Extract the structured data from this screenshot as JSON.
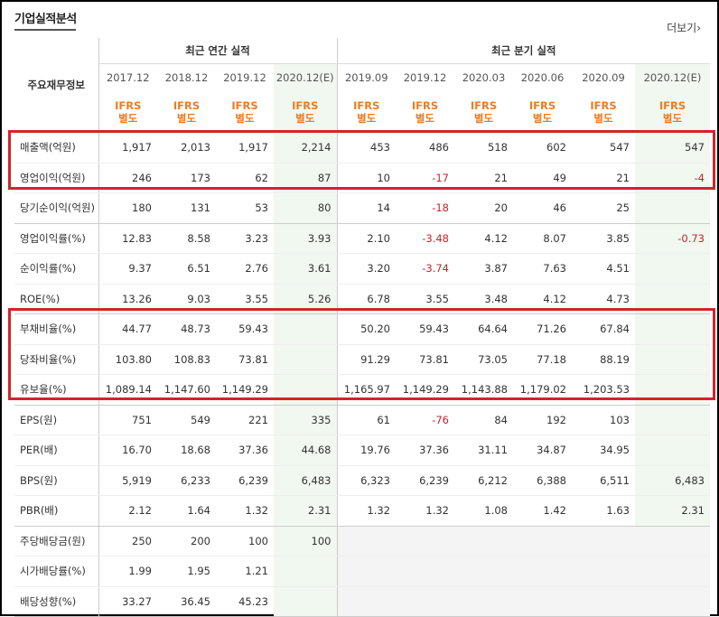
{
  "header": {
    "title": "기업실적분석",
    "more_label": "더보기"
  },
  "table": {
    "label_header": "주요재무정보",
    "group_annual": "최근 연간 실적",
    "group_quarter": "최근 분기 실적",
    "periods": [
      "2017.12",
      "2018.12",
      "2019.12",
      "2020.12(E)",
      "2019.09",
      "2019.12",
      "2020.03",
      "2020.06",
      "2020.09",
      "2020.12(E)"
    ],
    "ifrs": {
      "line1": "IFRS",
      "line2": "별도"
    },
    "rows": [
      {
        "label": "매출액(억원)",
        "values": [
          "1,917",
          "2,013",
          "1,917",
          "2,214",
          "453",
          "486",
          "518",
          "602",
          "547",
          "547"
        ]
      },
      {
        "label": "영업이익(억원)",
        "values": [
          "246",
          "173",
          "62",
          "87",
          "10",
          "-17",
          "21",
          "49",
          "21",
          "-4"
        ]
      },
      {
        "label": "당기순이익(억원)",
        "values": [
          "180",
          "131",
          "53",
          "80",
          "14",
          "-18",
          "20",
          "46",
          "25",
          ""
        ]
      },
      {
        "label": "영업이익률(%)",
        "values": [
          "12.83",
          "8.58",
          "3.23",
          "3.93",
          "2.10",
          "-3.48",
          "4.12",
          "8.07",
          "3.85",
          "-0.73"
        ]
      },
      {
        "label": "순이익률(%)",
        "values": [
          "9.37",
          "6.51",
          "2.76",
          "3.61",
          "3.20",
          "-3.74",
          "3.87",
          "7.63",
          "4.51",
          ""
        ]
      },
      {
        "label": "ROE(%)",
        "values": [
          "13.26",
          "9.03",
          "3.55",
          "5.26",
          "6.78",
          "3.55",
          "3.48",
          "4.12",
          "4.73",
          ""
        ]
      },
      {
        "label": "부채비율(%)",
        "values": [
          "44.77",
          "48.73",
          "59.43",
          "",
          "50.20",
          "59.43",
          "64.64",
          "71.26",
          "67.84",
          ""
        ]
      },
      {
        "label": "당좌비율(%)",
        "values": [
          "103.80",
          "108.83",
          "73.81",
          "",
          "91.29",
          "73.81",
          "73.05",
          "77.18",
          "88.19",
          ""
        ]
      },
      {
        "label": "유보율(%)",
        "values": [
          "1,089.14",
          "1,147.60",
          "1,149.29",
          "",
          "1,165.97",
          "1,149.29",
          "1,143.88",
          "1,179.02",
          "1,203.53",
          ""
        ]
      },
      {
        "label": "EPS(원)",
        "values": [
          "751",
          "549",
          "221",
          "335",
          "61",
          "-76",
          "84",
          "192",
          "103",
          ""
        ]
      },
      {
        "label": "PER(배)",
        "values": [
          "16.70",
          "18.68",
          "37.36",
          "44.68",
          "19.76",
          "37.36",
          "31.11",
          "34.87",
          "34.95",
          ""
        ]
      },
      {
        "label": "BPS(원)",
        "values": [
          "5,919",
          "6,233",
          "6,239",
          "6,483",
          "6,323",
          "6,239",
          "6,212",
          "6,388",
          "6,511",
          "6,483"
        ]
      },
      {
        "label": "PBR(배)",
        "values": [
          "2.12",
          "1.64",
          "1.32",
          "2.31",
          "1.32",
          "1.32",
          "1.08",
          "1.42",
          "1.63",
          "2.31"
        ]
      },
      {
        "label": "주당배당금(원)",
        "values": [
          "250",
          "200",
          "100",
          "100",
          "",
          "",
          "",
          "",
          "",
          ""
        ]
      },
      {
        "label": "시가배당률(%)",
        "values": [
          "1.99",
          "1.95",
          "1.21",
          "",
          "",
          "",
          "",
          "",
          "",
          ""
        ]
      },
      {
        "label": "배당성향(%)",
        "values": [
          "33.27",
          "36.45",
          "45.23",
          "",
          "",
          "",
          "",
          "",
          "",
          ""
        ]
      }
    ]
  },
  "colors": {
    "accent_orange": "#f07b20",
    "negative_red": "#c0272d",
    "highlight_box": "#d3232c",
    "estimate_bg": "#f1f8ef"
  }
}
